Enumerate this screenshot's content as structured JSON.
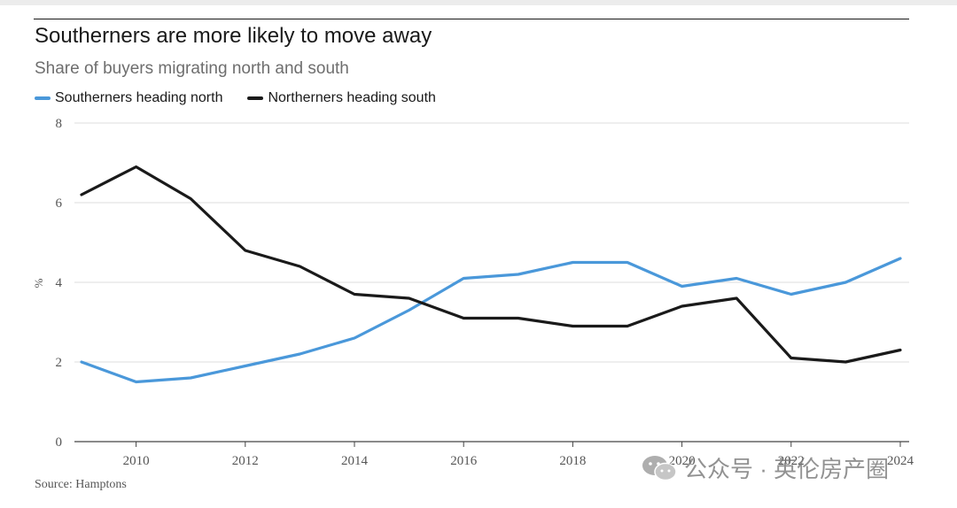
{
  "chart_data": {
    "type": "line",
    "title": "Southerners are more likely to move away",
    "subtitle": "Share of buyers migrating north and south",
    "ylabel": "%",
    "ylim": [
      0,
      8
    ],
    "y_ticks": [
      "0",
      "2",
      "4",
      "6",
      "8"
    ],
    "x_ticks": [
      "2010",
      "2012",
      "2014",
      "2016",
      "2018",
      "2020",
      "2022",
      "2024"
    ],
    "xlim": [
      2009,
      2024
    ],
    "x": [
      2009,
      2010,
      2011,
      2012,
      2013,
      2014,
      2015,
      2016,
      2017,
      2018,
      2019,
      2020,
      2021,
      2022,
      2023,
      2024
    ],
    "series": [
      {
        "name": "Southerners heading north",
        "color": "#4a98da",
        "values": [
          2.0,
          1.5,
          1.6,
          1.9,
          2.2,
          2.6,
          3.3,
          4.1,
          4.2,
          4.5,
          4.5,
          3.9,
          4.1,
          3.7,
          4.0,
          4.6
        ]
      },
      {
        "name": "Northerners heading south",
        "color": "#1a1a1a",
        "values": [
          6.2,
          6.9,
          6.1,
          4.8,
          4.4,
          3.7,
          3.6,
          3.1,
          3.1,
          2.9,
          2.9,
          3.4,
          3.6,
          2.1,
          2.0,
          2.3
        ]
      }
    ],
    "grid": true,
    "legend_position": "top-left"
  },
  "source": "Source: Hamptons",
  "watermark": "公众号 · 英伦房产圈"
}
